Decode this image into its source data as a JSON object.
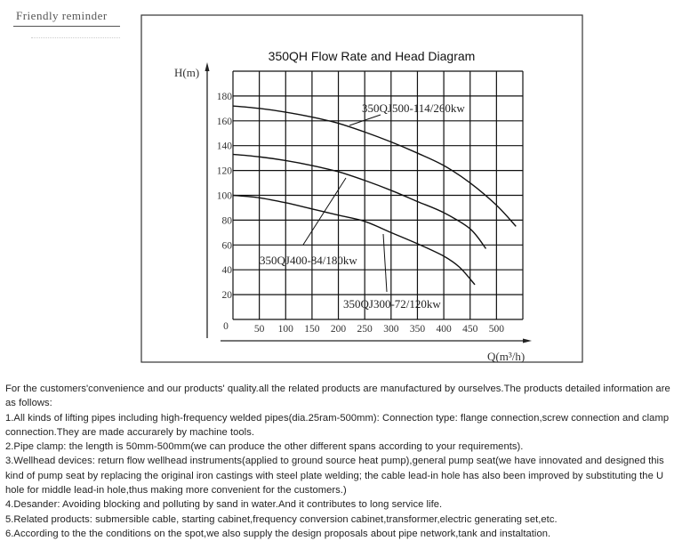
{
  "header": {
    "reminder": "Friendly reminder"
  },
  "chart_data": {
    "type": "line",
    "title": "350QH Flow Rate and Head Diagram",
    "xlabel": "Q(m³/h)",
    "ylabel": "H(m)",
    "xlim": [
      0,
      550
    ],
    "ylim": [
      0,
      200
    ],
    "x_ticks": [
      "0",
      "50",
      "100",
      "150",
      "200",
      "250",
      "300",
      "350",
      "400",
      "450",
      "500"
    ],
    "y_ticks": [
      "20",
      "40",
      "60",
      "80",
      "100",
      "120",
      "140",
      "160",
      "180"
    ],
    "grid": true,
    "series": [
      {
        "name": "350QJ500-114/260kw",
        "points": [
          [
            0,
            172
          ],
          [
            50,
            170
          ],
          [
            100,
            167
          ],
          [
            150,
            163
          ],
          [
            200,
            158
          ],
          [
            250,
            151
          ],
          [
            300,
            143
          ],
          [
            350,
            134
          ],
          [
            400,
            124
          ],
          [
            450,
            110
          ],
          [
            500,
            92
          ],
          [
            537,
            75
          ]
        ]
      },
      {
        "name": "350QJ400-84/180kw",
        "points": [
          [
            0,
            133
          ],
          [
            50,
            131
          ],
          [
            100,
            128
          ],
          [
            150,
            124
          ],
          [
            200,
            119
          ],
          [
            250,
            112
          ],
          [
            300,
            104
          ],
          [
            350,
            95
          ],
          [
            400,
            86
          ],
          [
            450,
            73
          ],
          [
            480,
            57
          ]
        ]
      },
      {
        "name": "350QJ300-72/120kw",
        "points": [
          [
            0,
            100
          ],
          [
            50,
            98
          ],
          [
            100,
            94
          ],
          [
            150,
            89
          ],
          [
            200,
            84
          ],
          [
            250,
            79
          ],
          [
            300,
            70
          ],
          [
            350,
            61
          ],
          [
            400,
            51
          ],
          [
            430,
            42
          ],
          [
            459,
            28
          ]
        ]
      }
    ]
  },
  "description": {
    "intro": "For the customers'convenience and our products' quality.all the related products are manufactured by ourselves.The products detailed information are as follows:",
    "items": [
      "1.All kinds of lifting pipes including high-frequency welded pipes(dia.25ram-500mm): Connection type: flange connection,screw connection and clamp connection.They are made accurarely by machine tools.",
      "2.Pipe clamp:  the length is 50mm-500mm(we can produce the other different spans according to your requirements).",
      "3.Wellhead devices: return flow wellhead instruments(applied to ground source heat pump),general pump seat(we have innovated and designed this kind of pump seat by replacing the original iron castings with steel plate welding; the cable lead-in hole has also been improved by substituting the U hole for middle lead-in hole,thus making more convenient for the customers.)",
      "4.Desander: Avoiding blocking and polluting by sand in water.And it contributes to long service life.",
      "5.Related products: submersible cable, starting cabinet,frequency conversion cabinet,transformer,electric generating set,etc.",
      "6.According to the the conditions on the spot,we also supply the design proposals about pipe network,tank and instaltation."
    ]
  }
}
